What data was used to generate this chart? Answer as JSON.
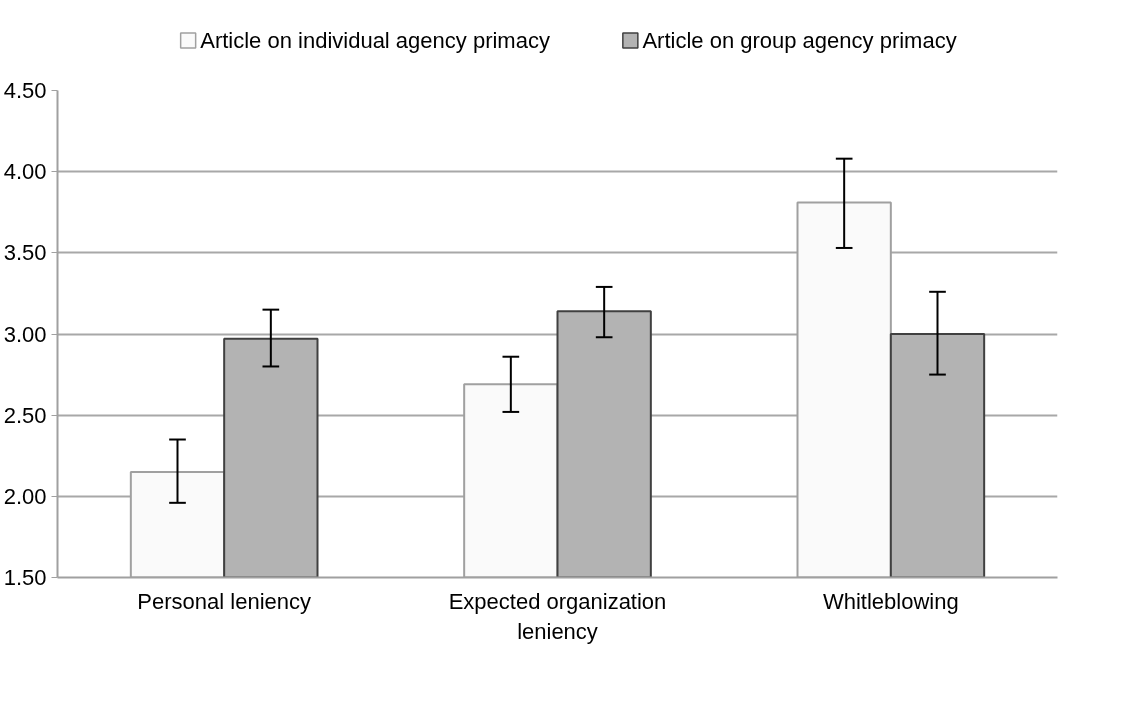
{
  "chart_data": {
    "type": "bar",
    "categories": [
      "Personal leniency",
      "Expected organization\nleniency",
      "Whitleblowing"
    ],
    "series": [
      {
        "name": "Article on individual agency primacy",
        "color": "#fafafa",
        "values": [
          2.15,
          2.69,
          3.81
        ],
        "errors": [
          [
            1.96,
            2.35
          ],
          [
            2.52,
            2.86
          ],
          [
            3.53,
            4.08
          ]
        ]
      },
      {
        "name": "Article on group agency primacy",
        "color": "#b3b3b3",
        "values": [
          2.97,
          3.14,
          3.0
        ],
        "errors": [
          [
            2.8,
            3.15
          ],
          [
            2.98,
            3.29
          ],
          [
            2.75,
            3.26
          ]
        ]
      }
    ],
    "ylim": [
      1.5,
      4.5
    ],
    "yticks": [
      {
        "value": 1.5,
        "label": "1.50"
      },
      {
        "value": 2,
        "label": "2.00"
      },
      {
        "value": 2.5,
        "label": "2.50"
      },
      {
        "value": 3,
        "label": "3.00"
      },
      {
        "value": 3.5,
        "label": "3.50"
      },
      {
        "value": 4,
        "label": "4.00"
      },
      {
        "value": 4.5,
        "label": "4.50"
      }
    ],
    "grid": "y",
    "legend": "top"
  }
}
